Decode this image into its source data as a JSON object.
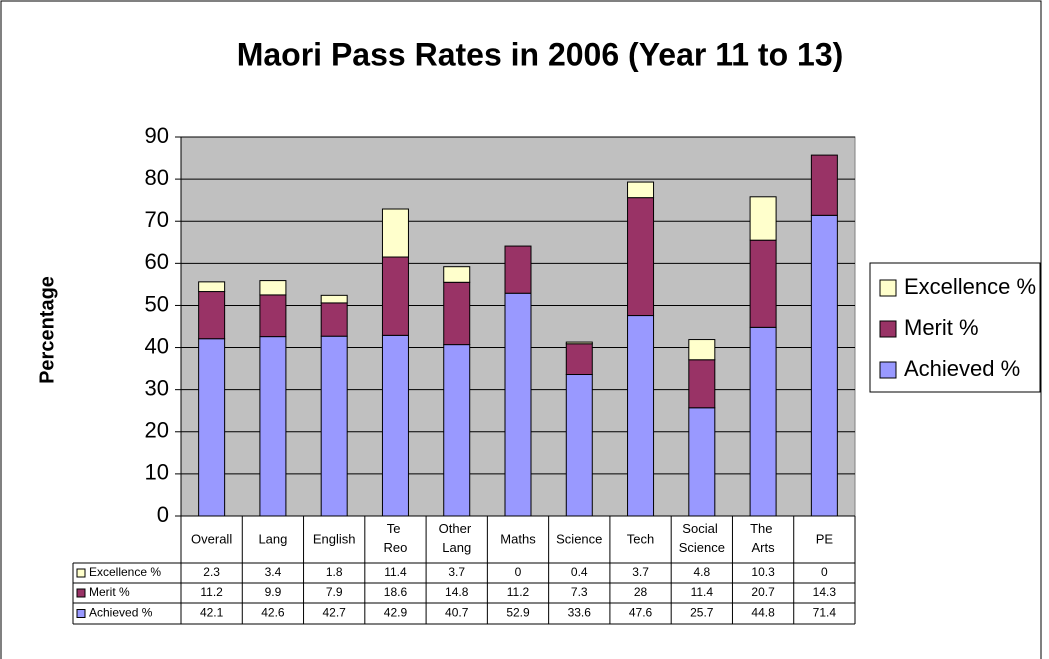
{
  "chart_data": {
    "type": "stacked_bar",
    "title": "Maori Pass Rates in 2006 (Year 11 to 13)",
    "y_label": "Percentage",
    "categories": [
      "Overall",
      "Lang",
      "English",
      "Te Reo",
      "Other Lang",
      "Maths",
      "Science",
      "Tech",
      "Social Science",
      "The Arts",
      "PE"
    ],
    "series": [
      {
        "name": "Achieved %",
        "color": "#9999ff",
        "values": [
          42.1,
          42.6,
          42.7,
          42.9,
          40.7,
          52.9,
          33.6,
          47.6,
          25.7,
          44.8,
          71.4
        ]
      },
      {
        "name": "Merit %",
        "color": "#993366",
        "values": [
          11.2,
          9.9,
          7.9,
          18.6,
          14.8,
          11.2,
          7.3,
          28,
          11.4,
          20.7,
          14.3
        ]
      },
      {
        "name": "Excellence %",
        "color": "#ffffcc",
        "values": [
          2.3,
          3.4,
          1.8,
          11.4,
          3.7,
          0,
          0.4,
          3.7,
          4.8,
          10.3,
          0
        ]
      }
    ],
    "ylim": [
      0,
      90
    ],
    "yticks": [
      0,
      10,
      20,
      30,
      40,
      50,
      60,
      70,
      80,
      90
    ],
    "grid": true
  }
}
